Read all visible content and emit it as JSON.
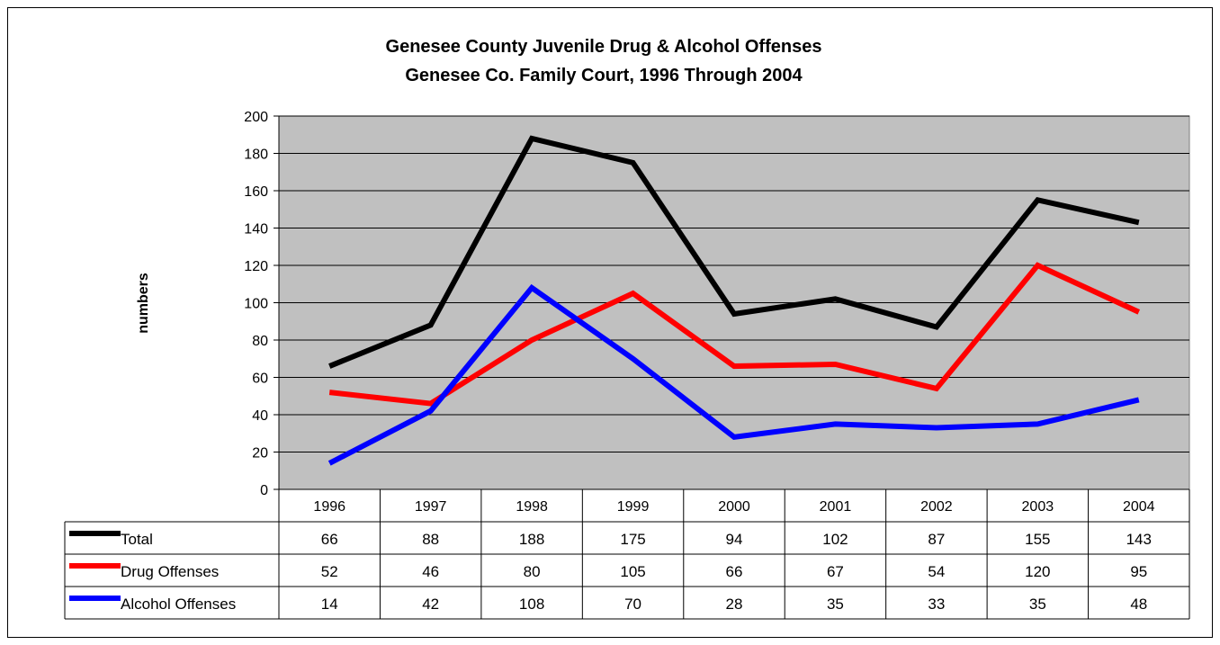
{
  "colors": {
    "plot_background": "#c0c0c0",
    "grid": "#000000",
    "total": "#000000",
    "drug": "#ff0000",
    "alcohol": "#0000ff"
  },
  "chart_data": {
    "type": "line",
    "title": "Genesee County Juvenile Drug & Alcohol Offenses",
    "subtitle": "Genesee Co. Family Court, 1996 Through 2004",
    "xlabel": "",
    "ylabel": "numbers",
    "ylim": [
      0,
      200
    ],
    "yticks": [
      0,
      20,
      40,
      60,
      80,
      100,
      120,
      140,
      160,
      180,
      200
    ],
    "grid": true,
    "legend": "data-table",
    "categories": [
      "1996",
      "1997",
      "1998",
      "1999",
      "2000",
      "2001",
      "2002",
      "2003",
      "2004"
    ],
    "series": [
      {
        "name": "Total",
        "color": "#000000",
        "values": [
          66,
          88,
          188,
          175,
          94,
          102,
          87,
          155,
          143
        ]
      },
      {
        "name": "Drug Offenses",
        "color": "#ff0000",
        "values": [
          52,
          46,
          80,
          105,
          66,
          67,
          54,
          120,
          95
        ]
      },
      {
        "name": "Alcohol Offenses",
        "color": "#0000ff",
        "values": [
          14,
          42,
          108,
          70,
          28,
          35,
          33,
          35,
          48
        ]
      }
    ]
  }
}
